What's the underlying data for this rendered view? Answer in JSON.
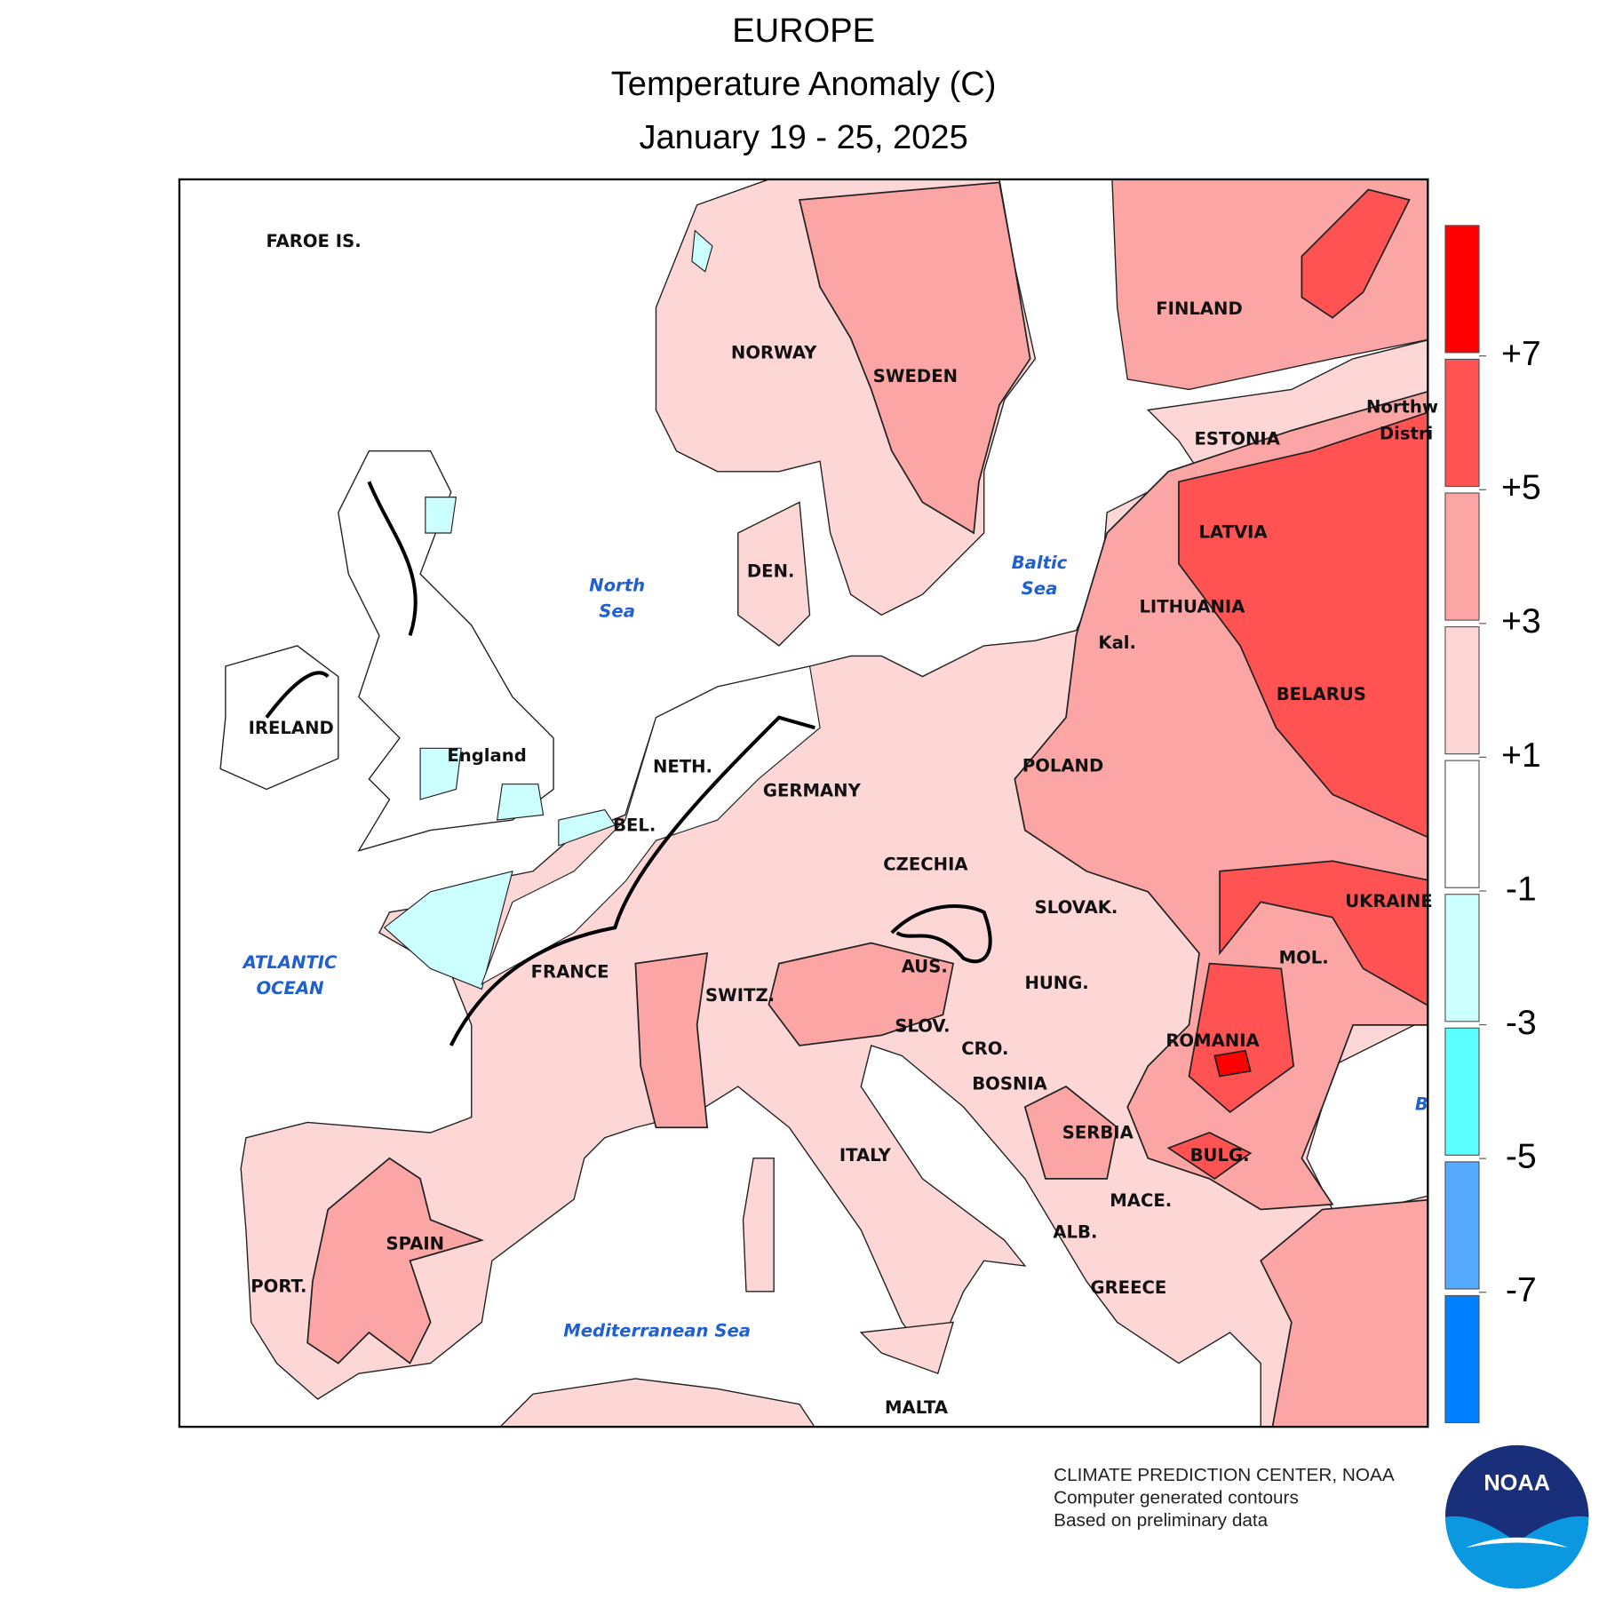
{
  "header": {
    "title": "EUROPE",
    "subtitle": "Temperature Anomaly (C)",
    "period": "January 19 - 25, 2025"
  },
  "map": {
    "countries": [
      "FAROE IS.",
      "NORWAY",
      "SWEDEN",
      "FINLAND",
      "ESTONIA",
      "LATVIA",
      "LITHUANIA",
      "Kal.",
      "BELARUS",
      "POLAND",
      "GERMANY",
      "NETH.",
      "BEL.",
      "DEN.",
      "IRELAND",
      "England",
      "CZECHIA",
      "SLOVAK.",
      "UKRAINE",
      "MOL.",
      "AUS.",
      "HUNG.",
      "SWITZ.",
      "SLOV.",
      "CRO.",
      "ROMANIA",
      "BOSNIA",
      "SERBIA",
      "BULG.",
      "ITALY",
      "MACE.",
      "ALB.",
      "SPAIN",
      "PORT.",
      "GREECE",
      "FRANCE",
      "MALTA",
      "Northw",
      "Distri"
    ],
    "seas": [
      "North",
      "Sea",
      "Baltic",
      "Sea",
      "ATLANTIC",
      "OCEAN",
      "Mediterranean Sea",
      "B"
    ]
  },
  "legend": {
    "colors": [
      "#ff0000",
      "#ff5252",
      "#fca5a5",
      "#fdd6d6",
      "#ffffff",
      "#ccffff",
      "#5cffff",
      "#55aaff",
      "#0080ff"
    ],
    "ticks": [
      {
        "value": 7,
        "label": "+7"
      },
      {
        "value": 5,
        "label": "+5"
      },
      {
        "value": 3,
        "label": "+3"
      },
      {
        "value": 1,
        "label": "+1"
      },
      -1,
      -3,
      -5,
      -7
    ]
  },
  "footer": {
    "credits": [
      "CLIMATE PREDICTION CENTER, NOAA",
      "Computer generated contours",
      "Based on preliminary data"
    ],
    "logo": "NOAA"
  }
}
